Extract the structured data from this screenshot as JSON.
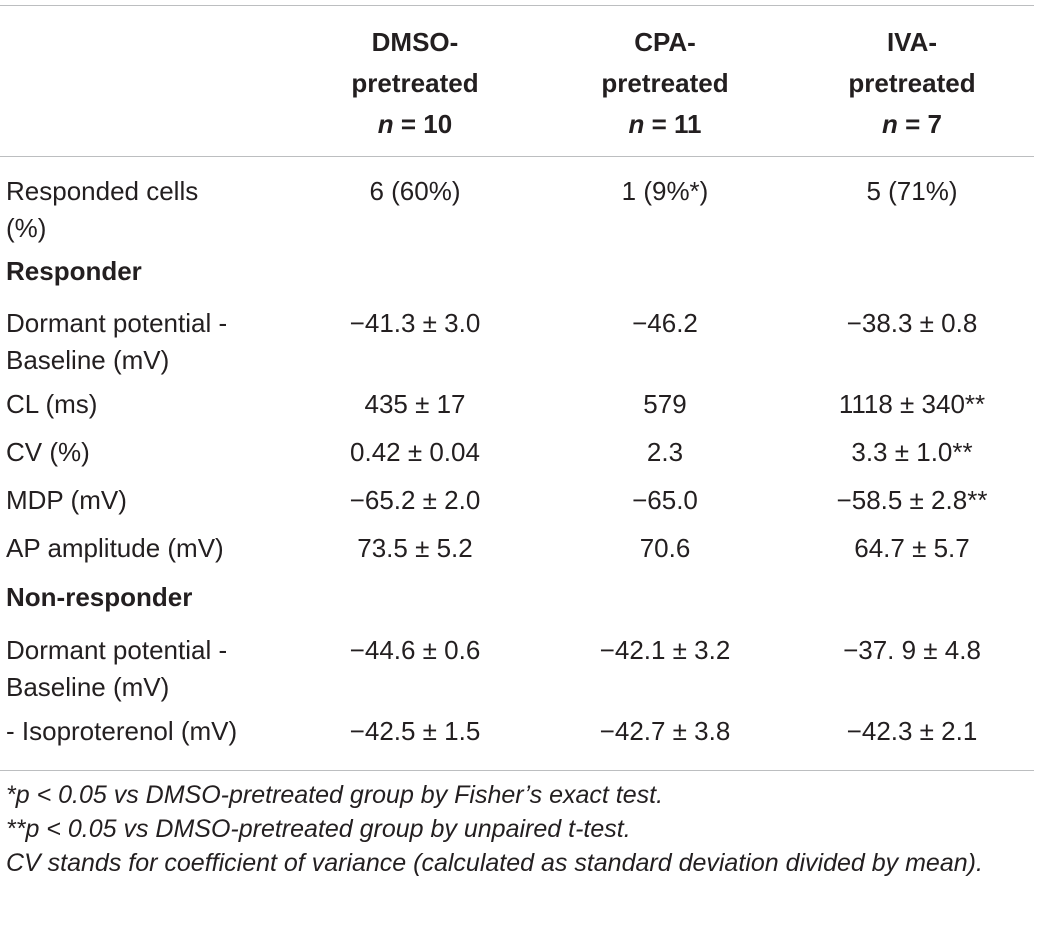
{
  "columns": [
    {
      "line1": "DMSO-",
      "line2": "pretreated",
      "n_label": "n",
      "n_value": "= 10"
    },
    {
      "line1": "CPA-",
      "line2": "pretreated",
      "n_label": "n",
      "n_value": "= 11"
    },
    {
      "line1": "IVA-",
      "line2": "pretreated",
      "n_label": "n",
      "n_value": "= 7"
    }
  ],
  "rows": {
    "responded": {
      "label1": "Responded cells",
      "label2": "(%)",
      "values": [
        "6 (60%)",
        "1 (9%*)",
        "5 (71%)"
      ]
    },
    "responder_header": "Responder",
    "responder": [
      {
        "label1": "Dormant potential -",
        "label2": "Baseline (mV)",
        "values": [
          "−41.3 ± 3.0",
          "−46.2",
          "−38.3 ± 0.8"
        ]
      },
      {
        "label1": "CL (ms)",
        "values": [
          "435 ± 17",
          "579",
          "1118 ± 340**"
        ]
      },
      {
        "label1": "CV (%)",
        "values": [
          "0.42 ± 0.04",
          "2.3",
          "3.3 ± 1.0**"
        ]
      },
      {
        "label1": "MDP (mV)",
        "values": [
          "−65.2 ± 2.0",
          "−65.0",
          "−58.5 ± 2.8**"
        ]
      },
      {
        "label1": "AP amplitude (mV)",
        "values": [
          "73.5 ± 5.2",
          "70.6",
          "64.7 ± 5.7"
        ]
      }
    ],
    "nonresponder_header": "Non-responder",
    "nonresponder": [
      {
        "label1": "Dormant potential -",
        "label2": "Baseline (mV)",
        "values": [
          "−44.6 ± 0.6",
          "−42.1 ± 3.2",
          "−37. 9 ± 4.8"
        ]
      },
      {
        "label1": "- Isoproterenol (mV)",
        "values": [
          "−42.5 ± 1.5",
          "−42.7 ± 3.8",
          "−42.3 ± 2.1"
        ]
      }
    ]
  },
  "footnotes": [
    "*p < 0.05 vs DMSO-pretreated group by Fisher’s exact test.",
    "**p < 0.05 vs DMSO-pretreated group by unpaired t-test.",
    "CV stands for coefficient of variance (calculated as standard deviation divided by mean)."
  ]
}
